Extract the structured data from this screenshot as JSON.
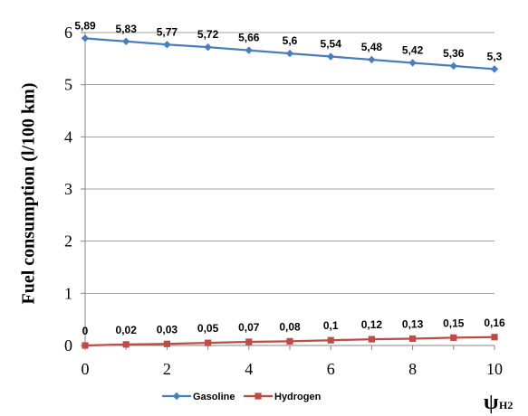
{
  "chart_data": {
    "type": "line",
    "ylabel": "Fuel consumption (l/100 km)",
    "xlabel_main": "ψ",
    "xlabel_sub": "H2",
    "x": [
      0,
      1,
      2,
      3,
      4,
      5,
      6,
      7,
      8,
      9,
      10
    ],
    "xlim": [
      0,
      10
    ],
    "ylim": [
      0,
      6
    ],
    "x_ticks": [
      "0",
      "2",
      "4",
      "6",
      "8",
      "10"
    ],
    "y_ticks": [
      "0",
      "1",
      "2",
      "3",
      "4",
      "5",
      "6"
    ],
    "grid": "horizontal",
    "legend_position": "bottom",
    "series": [
      {
        "name": "Gasoline",
        "color": "#4a7ebb",
        "marker": "diamond",
        "values": [
          5.89,
          5.83,
          5.77,
          5.72,
          5.66,
          5.6,
          5.54,
          5.48,
          5.42,
          5.36,
          5.3
        ],
        "labels": [
          "5,89",
          "5,83",
          "5,77",
          "5,72",
          "5,66",
          "5,6",
          "5,54",
          "5,48",
          "5,42",
          "5,36",
          "5,3"
        ]
      },
      {
        "name": "Hydrogen",
        "color": "#be4b48",
        "marker": "square",
        "values": [
          0,
          0.02,
          0.03,
          0.05,
          0.07,
          0.08,
          0.1,
          0.12,
          0.13,
          0.15,
          0.16
        ],
        "labels": [
          "0",
          "0,02",
          "0,03",
          "0,05",
          "0,07",
          "0,08",
          "0,1",
          "0,12",
          "0,13",
          "0,15",
          "0,16"
        ]
      }
    ]
  }
}
